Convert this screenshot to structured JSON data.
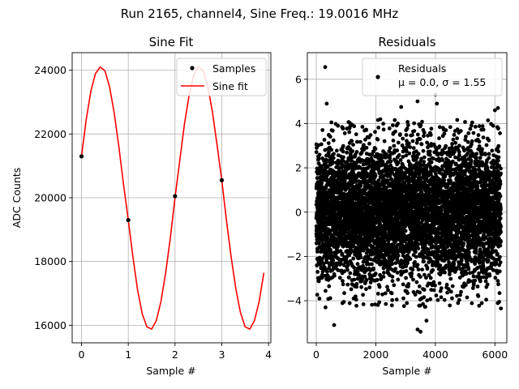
{
  "suptitle": "Run 2165, channel4, Sine Freq.: 19.0016 MHz",
  "chart_data": [
    {
      "type": "line",
      "title": "Sine Fit",
      "xlabel": "Sample #",
      "ylabel": "ADC Counts",
      "xlim": [
        -0.2,
        4.05
      ],
      "ylim": [
        15450,
        24550
      ],
      "xticks": [
        "0",
        "1",
        "2",
        "3",
        "4"
      ],
      "yticks": [
        "16000",
        "18000",
        "20000",
        "22000",
        "24000"
      ],
      "grid": true,
      "legend": "top-right",
      "series": [
        {
          "name": "Samples",
          "kind": "scatter",
          "color": "#000000",
          "x": [
            0,
            1,
            2,
            3
          ],
          "y": [
            21300,
            19300,
            20050,
            20550
          ]
        },
        {
          "name": "Sine fit",
          "kind": "line",
          "color": "#ff0000",
          "x": [
            0,
            0.1,
            0.2,
            0.3,
            0.4,
            0.5,
            0.6,
            0.7,
            0.8,
            0.9,
            1.0,
            1.1,
            1.2,
            1.3,
            1.4,
            1.5,
            1.6,
            1.7,
            1.8,
            1.9,
            2.0,
            2.1,
            2.2,
            2.3,
            2.4,
            2.5,
            2.6,
            2.7,
            2.8,
            2.9,
            3.0,
            3.1,
            3.2,
            3.3,
            3.4,
            3.5,
            3.6,
            3.7,
            3.8,
            3.9
          ],
          "y": [
            21300,
            22450,
            23350,
            23900,
            24100,
            23980,
            23480,
            22650,
            21600,
            20400,
            19300,
            18150,
            17100,
            16350,
            15950,
            15880,
            16150,
            16750,
            17650,
            18750,
            20000,
            21150,
            22300,
            23200,
            23850,
            24100,
            24000,
            23500,
            22700,
            21650,
            20550,
            19300,
            18150,
            17150,
            16400,
            15950,
            15880,
            16150,
            16750,
            17650
          ]
        }
      ]
    },
    {
      "type": "scatter",
      "title": "Residuals",
      "xlabel": "Sample #",
      "ylabel": "",
      "xlim": [
        -300,
        6400
      ],
      "ylim": [
        -5.9,
        7.2
      ],
      "xticks": [
        "0",
        "2000",
        "4000",
        "6000"
      ],
      "yticks": [
        "−4",
        "−2",
        "0",
        "2",
        "4",
        "6"
      ],
      "grid": true,
      "legend": "top-right",
      "series": [
        {
          "name": "Residuals",
          "color": "#000000",
          "count": 6200,
          "mean": 0.0,
          "std": 1.55,
          "legend_lines": [
            "Residuals",
            "μ = 0.0, σ = 1.55"
          ],
          "outliers": [
            [
              300,
              6.55
            ],
            [
              350,
              4.9
            ],
            [
              600,
              -5.1
            ],
            [
              3400,
              -5.3
            ],
            [
              3500,
              -5.4
            ],
            [
              3400,
              5.0
            ],
            [
              4050,
              4.9
            ],
            [
              2850,
              4.75
            ],
            [
              3700,
              -4.9
            ],
            [
              4000,
              5.3
            ],
            [
              310,
              -4.3
            ],
            [
              6100,
              4.7
            ],
            [
              6000,
              4.6
            ],
            [
              6200,
              -4.35
            ]
          ]
        }
      ]
    }
  ]
}
